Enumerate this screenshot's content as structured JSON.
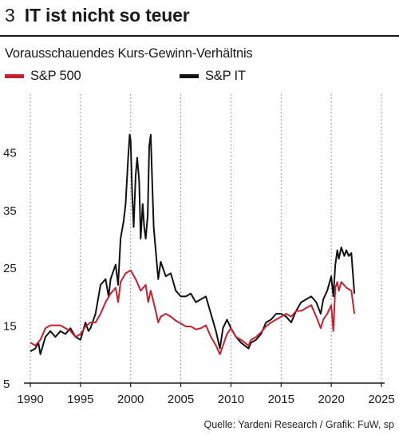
{
  "header": {
    "number": "3",
    "title": "IT ist nicht so teuer",
    "subtitle": "Vorausschauendes Kurs-Gewinn-Verhältnis"
  },
  "source": "Quelle: Yardeni Research / Grafik: FuW, sp",
  "colors": {
    "sp500": "#c8202e",
    "sp_it": "#111111",
    "grid": "#7a7a7a",
    "text": "#1a1a1a"
  },
  "chart_data": {
    "type": "line",
    "title": "IT ist nicht so teuer",
    "subtitle": "Vorausschauendes Kurs-Gewinn-Verhältnis",
    "xlabel": "",
    "ylabel": "",
    "xlim": [
      1990,
      2025
    ],
    "ylim": [
      5,
      55
    ],
    "x_ticks": [
      1990,
      1995,
      2000,
      2005,
      2010,
      2015,
      2020,
      2025
    ],
    "y_ticks": [
      5,
      15,
      25,
      35,
      45
    ],
    "grid": "vertical dotted",
    "legend_position": "top",
    "series": [
      {
        "name": "S&P 500",
        "color": "#c8202e",
        "x": [
          1990.0,
          1990.5,
          1991.0,
          1991.5,
          1992.0,
          1992.5,
          1993.0,
          1993.5,
          1994.0,
          1994.5,
          1995.0,
          1995.5,
          1996.0,
          1996.5,
          1997.0,
          1997.5,
          1998.0,
          1998.5,
          1998.75,
          1999.0,
          1999.5,
          2000.0,
          2000.5,
          2001.0,
          2001.5,
          2001.75,
          2002.0,
          2002.5,
          2002.75,
          2003.0,
          2003.5,
          2004.0,
          2004.5,
          2005.0,
          2005.5,
          2006.0,
          2006.5,
          2007.0,
          2007.5,
          2008.0,
          2008.5,
          2008.9,
          2009.2,
          2009.6,
          2010.0,
          2010.5,
          2011.0,
          2011.75,
          2012.0,
          2012.5,
          2013.0,
          2013.5,
          2014.0,
          2014.5,
          2015.0,
          2015.5,
          2016.0,
          2016.5,
          2017.0,
          2017.5,
          2018.0,
          2018.5,
          2018.95,
          2019.2,
          2019.6,
          2020.0,
          2020.2,
          2020.4,
          2020.6,
          2020.75,
          2021.0,
          2021.5,
          2022.0,
          2022.3
        ],
        "values": [
          12.0,
          11.5,
          12.5,
          14.5,
          15.0,
          15.0,
          15.0,
          14.5,
          14.0,
          13.0,
          13.5,
          14.8,
          15.5,
          15.5,
          17.0,
          19.0,
          20.5,
          21.5,
          19.0,
          22.5,
          24.0,
          24.5,
          23.0,
          21.0,
          22.0,
          19.0,
          21.0,
          17.5,
          15.5,
          16.5,
          17.0,
          16.5,
          15.8,
          15.3,
          14.8,
          14.8,
          14.3,
          14.5,
          15.0,
          13.0,
          11.5,
          10.0,
          11.5,
          13.5,
          14.5,
          13.0,
          12.5,
          11.5,
          12.5,
          13.0,
          13.8,
          14.8,
          15.5,
          16.0,
          16.5,
          17.0,
          16.5,
          17.5,
          17.5,
          18.0,
          18.5,
          16.5,
          14.5,
          16.0,
          17.0,
          18.5,
          14.0,
          21.5,
          22.5,
          21.0,
          22.5,
          21.5,
          21.0,
          17.0
        ]
      },
      {
        "name": "S&P IT",
        "color": "#111111",
        "x": [
          1990.0,
          1990.5,
          1990.8,
          1991.0,
          1991.5,
          1992.0,
          1992.5,
          1993.0,
          1993.5,
          1994.0,
          1994.5,
          1995.0,
          1995.5,
          1995.8,
          1996.0,
          1996.5,
          1997.0,
          1997.5,
          1997.8,
          1998.0,
          1998.5,
          1998.75,
          1999.0,
          1999.3,
          1999.5,
          1999.75,
          1999.9,
          2000.0,
          2000.15,
          2000.3,
          2000.5,
          2000.65,
          2000.85,
          2001.0,
          2001.2,
          2001.35,
          2001.5,
          2001.7,
          2001.85,
          2002.0,
          2002.15,
          2002.3,
          2002.5,
          2002.75,
          2003.0,
          2003.5,
          2004.0,
          2004.5,
          2005.0,
          2005.5,
          2006.0,
          2006.5,
          2007.0,
          2007.5,
          2008.0,
          2008.5,
          2008.9,
          2009.2,
          2009.6,
          2010.0,
          2010.5,
          2011.0,
          2011.75,
          2012.0,
          2012.5,
          2013.0,
          2013.5,
          2014.0,
          2014.5,
          2015.0,
          2015.5,
          2016.0,
          2016.5,
          2017.0,
          2017.5,
          2018.0,
          2018.5,
          2018.95,
          2019.2,
          2019.6,
          2020.0,
          2020.2,
          2020.4,
          2020.6,
          2020.75,
          2021.0,
          2021.3,
          2021.5,
          2021.75,
          2022.0,
          2022.3
        ],
        "values": [
          10.5,
          11.0,
          12.0,
          10.0,
          13.0,
          14.0,
          13.0,
          14.0,
          13.5,
          14.5,
          13.0,
          12.5,
          15.5,
          14.0,
          14.5,
          17.0,
          22.0,
          23.0,
          20.0,
          23.0,
          25.5,
          22.0,
          30.0,
          33.0,
          36.0,
          44.0,
          48.0,
          47.0,
          38.0,
          32.0,
          41.0,
          44.0,
          40.0,
          30.0,
          36.0,
          32.0,
          30.0,
          34.0,
          46.0,
          48.0,
          40.0,
          32.0,
          28.0,
          23.0,
          26.0,
          23.5,
          24.0,
          21.0,
          20.0,
          20.0,
          20.5,
          19.0,
          19.5,
          20.0,
          17.0,
          14.0,
          11.0,
          14.5,
          16.0,
          14.5,
          13.0,
          12.0,
          11.0,
          12.0,
          12.5,
          13.5,
          15.5,
          16.0,
          17.0,
          17.0,
          16.5,
          15.5,
          17.5,
          19.0,
          19.5,
          20.0,
          19.0,
          17.0,
          19.5,
          21.0,
          23.5,
          20.0,
          25.5,
          28.0,
          26.5,
          28.5,
          27.0,
          28.0,
          27.0,
          27.5,
          20.5
        ]
      }
    ]
  }
}
